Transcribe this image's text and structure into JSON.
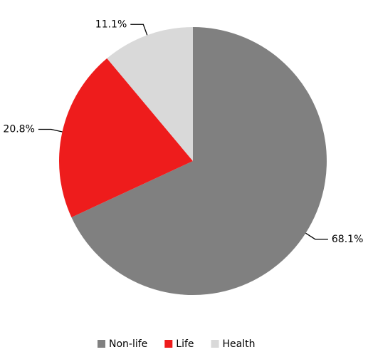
{
  "chart_data": {
    "type": "pie",
    "categories": [
      "Non-life",
      "Life",
      "Health"
    ],
    "values": [
      68.1,
      20.8,
      11.1
    ],
    "value_labels": [
      "68.1%",
      "20.8%",
      "11.1%"
    ],
    "colors": [
      "#808080",
      "#ee1c1c",
      "#d9d9d9"
    ],
    "legend": "bottom"
  }
}
